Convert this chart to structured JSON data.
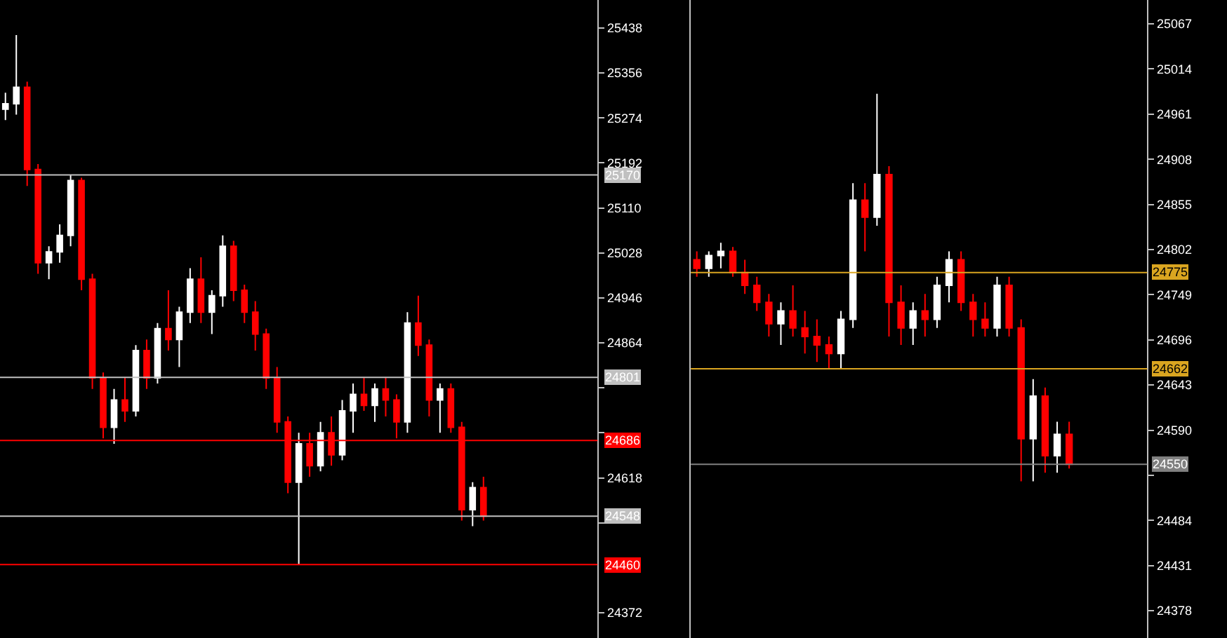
{
  "chart_data": [
    {
      "type": "candlestick",
      "categories": [
        null,
        null,
        null,
        null,
        null,
        null,
        null,
        null,
        null,
        null,
        null,
        null,
        null,
        null,
        null,
        null,
        null,
        null,
        null,
        null,
        null,
        null,
        null,
        null,
        null,
        null,
        null,
        null,
        null,
        null,
        null,
        null,
        null,
        null,
        null,
        null,
        null,
        null,
        null,
        null,
        null,
        null,
        null,
        null,
        null,
        null,
        null,
        null,
        null,
        null,
        null,
        null,
        null,
        null,
        null
      ],
      "ohlc": [
        [
          25290,
          25320,
          25270,
          25300
        ],
        [
          25300,
          25425,
          25280,
          25330
        ],
        [
          25330,
          25340,
          25150,
          25180
        ],
        [
          25180,
          25190,
          24990,
          25010
        ],
        [
          25010,
          25040,
          24980,
          25030
        ],
        [
          25030,
          25080,
          25010,
          25060
        ],
        [
          25060,
          25170,
          25040,
          25160
        ],
        [
          25160,
          25165,
          24960,
          24980
        ],
        [
          24980,
          24990,
          24780,
          24800
        ],
        [
          24800,
          24810,
          24690,
          24710
        ],
        [
          24710,
          24780,
          24680,
          24760
        ],
        [
          24760,
          24800,
          24720,
          24740
        ],
        [
          24740,
          24860,
          24730,
          24850
        ],
        [
          24850,
          24870,
          24780,
          24800
        ],
        [
          24800,
          24900,
          24790,
          24890
        ],
        [
          24890,
          24960,
          24850,
          24870
        ],
        [
          24870,
          24930,
          24820,
          24920
        ],
        [
          24920,
          25000,
          24900,
          24980
        ],
        [
          24980,
          25020,
          24900,
          24920
        ],
        [
          24920,
          24960,
          24880,
          24950
        ],
        [
          24950,
          25060,
          24930,
          25040
        ],
        [
          25040,
          25050,
          24940,
          24960
        ],
        [
          24960,
          24970,
          24900,
          24920
        ],
        [
          24920,
          24940,
          24850,
          24880
        ],
        [
          24880,
          24890,
          24780,
          24800
        ],
        [
          24800,
          24820,
          24700,
          24720
        ],
        [
          24720,
          24730,
          24590,
          24610
        ],
        [
          24610,
          24700,
          24460,
          24680
        ],
        [
          24680,
          24700,
          24620,
          24640
        ],
        [
          24640,
          24720,
          24630,
          24700
        ],
        [
          24700,
          24730,
          24640,
          24660
        ],
        [
          24660,
          24760,
          24650,
          24740
        ],
        [
          24740,
          24790,
          24700,
          24770
        ],
        [
          24770,
          24800,
          24740,
          24750
        ],
        [
          24750,
          24790,
          24720,
          24780
        ],
        [
          24780,
          24800,
          24730,
          24760
        ],
        [
          24760,
          24770,
          24690,
          24720
        ],
        [
          24720,
          24920,
          24700,
          24900
        ],
        [
          24900,
          24950,
          24840,
          24860
        ],
        [
          24860,
          24870,
          24730,
          24760
        ],
        [
          24760,
          24790,
          24700,
          24780
        ],
        [
          24780,
          24790,
          24700,
          24710
        ],
        [
          24710,
          24720,
          24540,
          24560
        ],
        [
          24560,
          24610,
          24530,
          24600
        ],
        [
          24600,
          24620,
          24540,
          24548
        ],
        null,
        null,
        null,
        null,
        null,
        null,
        null,
        null,
        null,
        null
      ],
      "ylim": [
        24326,
        25489
      ],
      "yticks": [
        25438,
        25356,
        25274,
        25192,
        25110,
        25028,
        24946,
        24864,
        {
          "value": 24782,
          "label": null
        },
        {
          "value": 24700,
          "label": null
        },
        24618,
        {
          "value": 24536,
          "label": null
        },
        24372
      ],
      "ref_lines": [
        {
          "axis": "y",
          "value": 25170,
          "label": "25170",
          "color": "#c0c0c0"
        },
        {
          "axis": "y",
          "value": 24801,
          "label": "24801",
          "color": "#c0c0c0"
        },
        {
          "axis": "y",
          "value": 24686,
          "label": "24686",
          "color": "#ff0000"
        },
        {
          "axis": "y",
          "value": 24548,
          "label": "24548",
          "color": "#c0c0c0"
        },
        {
          "axis": "y",
          "value": 24460,
          "label": "24460",
          "color": "#ff0000"
        }
      ],
      "grid": false
    },
    {
      "type": "candlestick",
      "categories": [
        null,
        null,
        null,
        null,
        null,
        null,
        null,
        null,
        null,
        null,
        null,
        null,
        null,
        null,
        null,
        null,
        null,
        null,
        null,
        null,
        null,
        null,
        null,
        null,
        null,
        null,
        null,
        null,
        null,
        null,
        null,
        null,
        null,
        null,
        null,
        null,
        null,
        null
      ],
      "ohlc": [
        [
          24790,
          24800,
          24770,
          24780
        ],
        [
          24780,
          24800,
          24770,
          24795
        ],
        [
          24795,
          24810,
          24780,
          24800
        ],
        [
          24800,
          24805,
          24770,
          24775
        ],
        [
          24775,
          24790,
          24750,
          24760
        ],
        [
          24760,
          24770,
          24730,
          24740
        ],
        [
          24740,
          24750,
          24700,
          24715
        ],
        [
          24715,
          24740,
          24690,
          24730
        ],
        [
          24730,
          24760,
          24700,
          24710
        ],
        [
          24710,
          24730,
          24680,
          24700
        ],
        [
          24700,
          24720,
          24670,
          24690
        ],
        [
          24690,
          24700,
          24662,
          24680
        ],
        [
          24680,
          24730,
          24662,
          24720
        ],
        [
          24720,
          24880,
          24710,
          24860
        ],
        [
          24860,
          24880,
          24800,
          24840
        ],
        [
          24840,
          24985,
          24830,
          24890
        ],
        [
          24890,
          24900,
          24700,
          24740
        ],
        [
          24740,
          24760,
          24690,
          24710
        ],
        [
          24710,
          24740,
          24690,
          24730
        ],
        [
          24730,
          24750,
          24700,
          24720
        ],
        [
          24720,
          24770,
          24710,
          24760
        ],
        [
          24760,
          24800,
          24740,
          24790
        ],
        [
          24790,
          24800,
          24730,
          24740
        ],
        [
          24740,
          24750,
          24700,
          24720
        ],
        [
          24720,
          24740,
          24700,
          24710
        ],
        [
          24710,
          24770,
          24700,
          24760
        ],
        [
          24760,
          24770,
          24700,
          24710
        ],
        [
          24710,
          24720,
          24530,
          24580
        ],
        [
          24580,
          24650,
          24530,
          24630
        ],
        [
          24630,
          24640,
          24540,
          24560
        ],
        [
          24560,
          24600,
          24540,
          24585
        ],
        [
          24585,
          24600,
          24545,
          24550
        ],
        null,
        null,
        null,
        null,
        null,
        null
      ],
      "ylim": [
        24346,
        25095
      ],
      "yticks": [
        25067,
        25014,
        24961,
        24908,
        24855,
        24802,
        24749,
        24696,
        24643,
        24590,
        {
          "value": 24537,
          "label": null
        },
        24484,
        24431,
        24378
      ],
      "ref_lines": [
        {
          "axis": "y",
          "value": 24775,
          "label": "24775",
          "color": "#daa520"
        },
        {
          "axis": "y",
          "value": 24662,
          "label": "24662",
          "color": "#daa520"
        },
        {
          "axis": "y",
          "value": 24550,
          "label": "24550",
          "color": "#808080"
        }
      ],
      "grid": false
    }
  ]
}
